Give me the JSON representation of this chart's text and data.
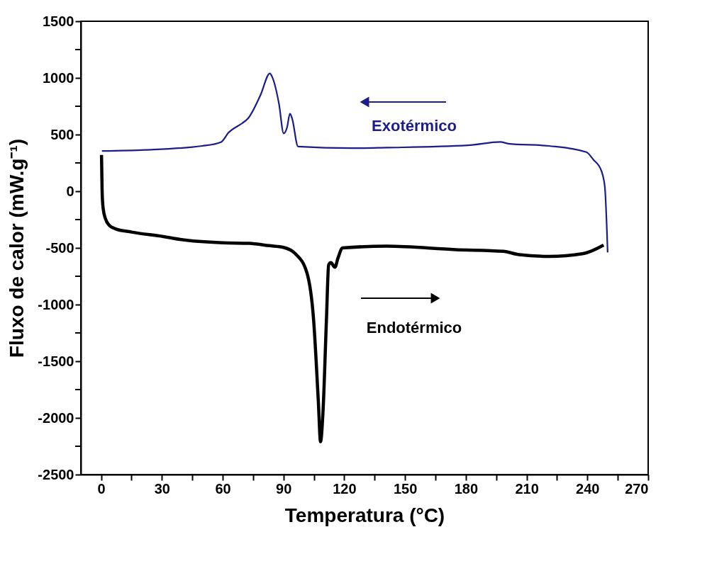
{
  "chart_data": {
    "type": "line",
    "xlabel": "Temperatura (°C)",
    "ylabel": "Fluxo de calor (mW.g⁻¹)",
    "xlim": [
      -10,
      270
    ],
    "ylim": [
      -2500,
      1500
    ],
    "xticks": [
      0,
      {
        "value": 15,
        "label": null
      },
      30,
      {
        "value": 45,
        "label": null
      },
      60,
      {
        "value": 75,
        "label": null
      },
      90,
      {
        "value": 105,
        "label": null
      },
      120,
      {
        "value": 135,
        "label": null
      },
      150,
      {
        "value": 165,
        "label": null
      },
      180,
      {
        "value": 195,
        "label": null
      },
      210,
      {
        "value": 225,
        "label": null
      },
      240,
      {
        "value": 255,
        "label": null
      },
      270
    ],
    "yticks": [
      -2500,
      {
        "value": -2250,
        "label": null
      },
      -2000,
      {
        "value": -1750,
        "label": null
      },
      -1500,
      {
        "value": -1250,
        "label": null
      },
      -1000,
      {
        "value": -750,
        "label": null
      },
      -500,
      {
        "value": -250,
        "label": null
      },
      0,
      {
        "value": 250,
        "label": null
      },
      500,
      {
        "value": 750,
        "label": null
      },
      1000,
      {
        "value": 1250,
        "label": null
      },
      1500
    ],
    "series": [
      {
        "color": "#1c1c8a",
        "x": [
          250,
          248.6,
          246.9,
          242.9,
          239.5,
          221,
          201,
          197,
          181,
          141,
          124,
          97.2,
          94.3,
          93.2,
          91.8,
          90.1,
          87.8,
          84.4,
          83.3,
          78.7,
          72.4,
          69.6,
          62.8,
          59.3,
          50,
          21.7,
          0.4
        ],
        "values": [
          -540,
          40,
          180,
          280,
          345,
          400,
          420,
          435,
          405,
          385,
          380,
          395,
          640,
          685,
          565,
          510,
          770,
          1010,
          1040,
          850,
          640,
          600,
          515,
          435,
          400,
          365,
          355
        ]
      },
      {
        "color": "#000000",
        "x": [
          0.2,
          0.5,
          1,
          2.2,
          4,
          6.9,
          15,
          30.8,
          39,
          60,
          73,
          83,
          90,
          95.8,
          101.5,
          104.9,
          107.2,
          108.3,
          109.5,
          111.2,
          112.3,
          113.4,
          115.4,
          116.9,
          119.2,
          141,
          175,
          198.5,
          206.4,
          221,
          238,
          248
        ],
        "values": [
          320,
          0,
          -150,
          -245,
          -300,
          -330,
          -360,
          -400,
          -425,
          -455,
          -460,
          -480,
          -495,
          -550,
          -715,
          -1140,
          -1850,
          -2210,
          -1950,
          -1140,
          -650,
          -630,
          -670,
          -590,
          -500,
          -485,
          -515,
          -530,
          -560,
          -575,
          -550,
          -475
        ]
      }
    ],
    "annotations": [
      "Exotérmico",
      "Endotérmico"
    ]
  }
}
